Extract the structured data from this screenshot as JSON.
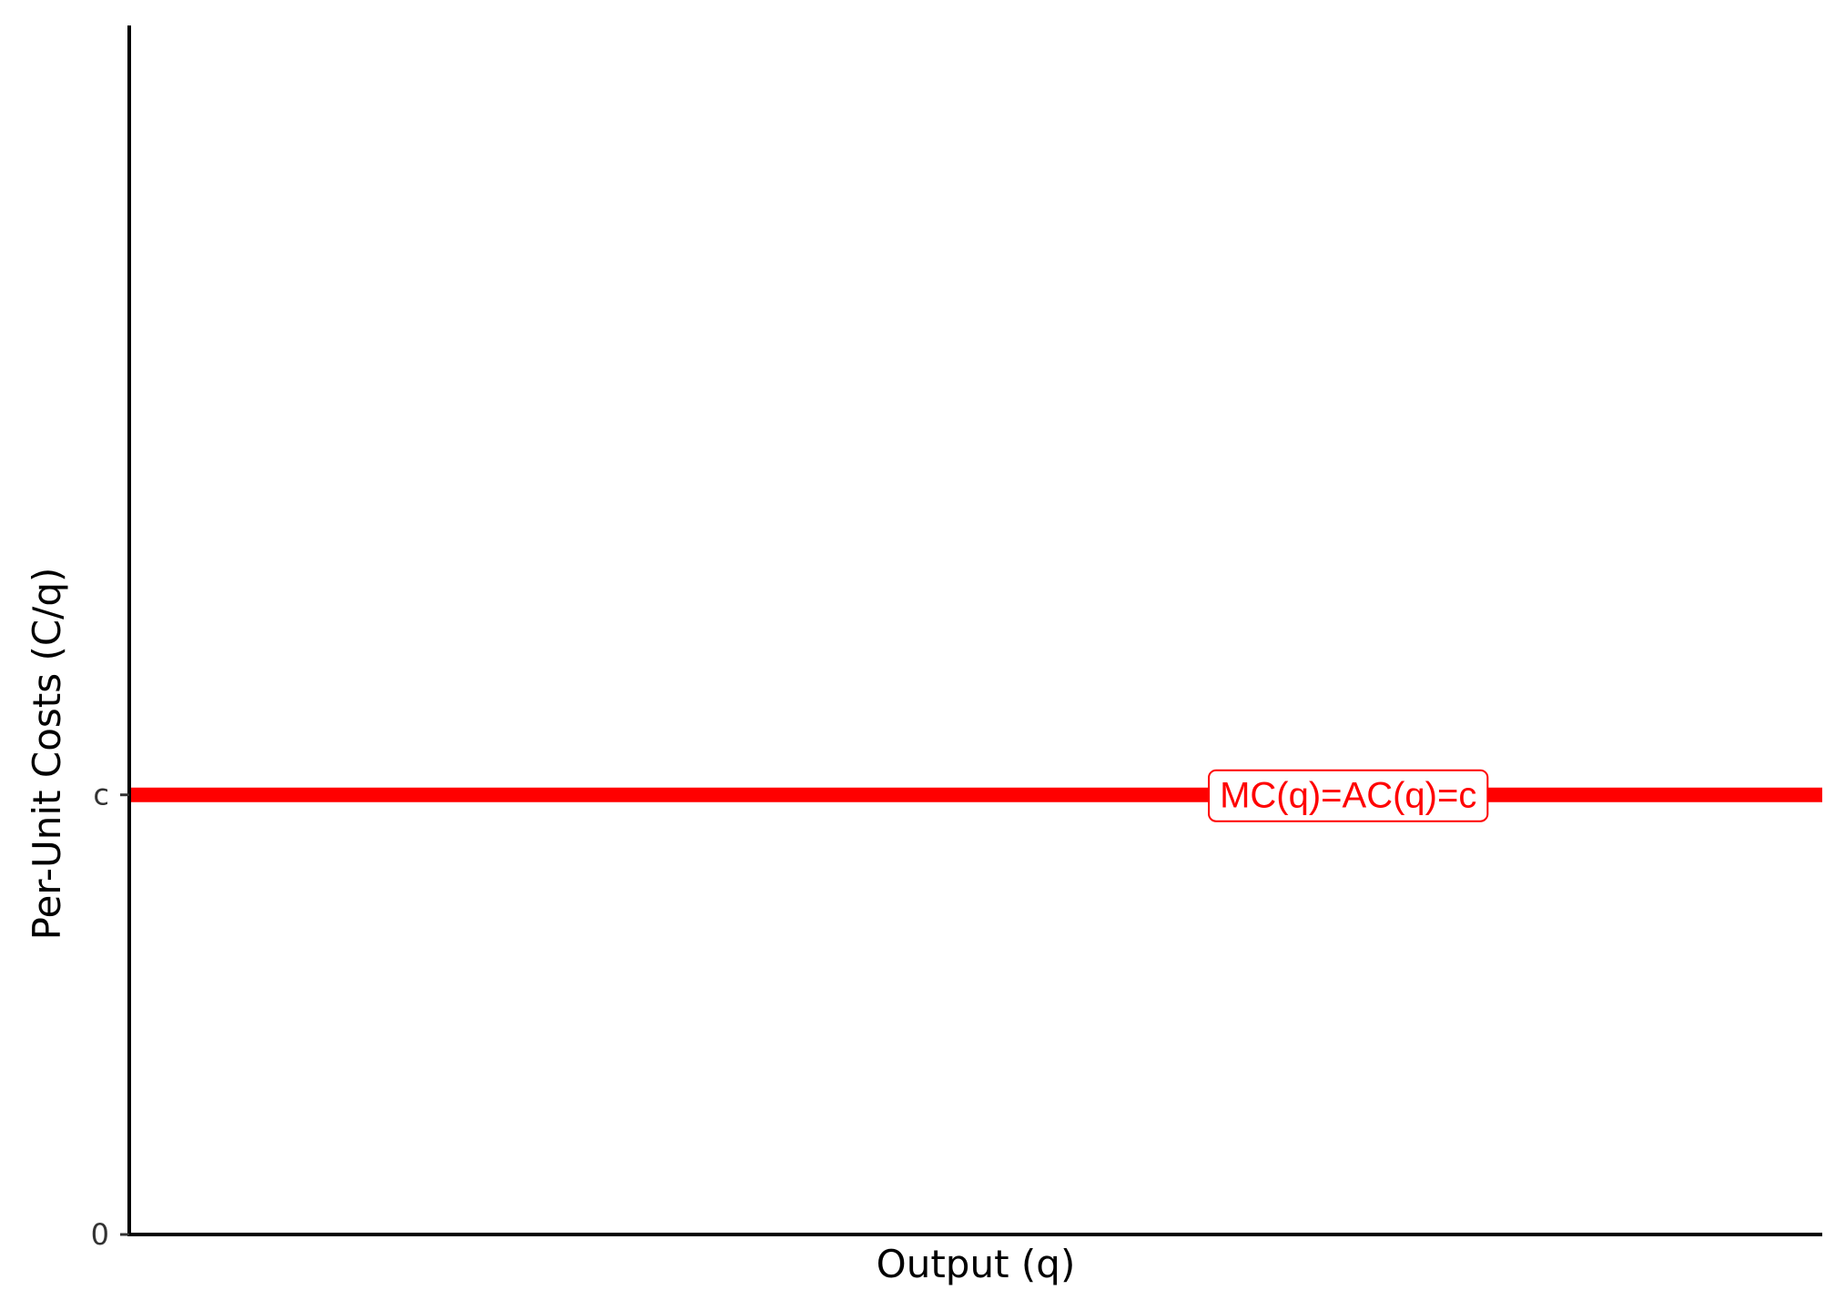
{
  "chart_data": {
    "type": "line",
    "xlabel": "Output (q)",
    "ylabel": "Per-Unit Costs (C/q)",
    "ylim": [
      0,
      2.75
    ],
    "y_ticks": [
      {
        "value": 0,
        "label": "0"
      },
      {
        "value": 1,
        "label": "c"
      }
    ],
    "x_ticks": [],
    "grid": false,
    "series": [
      {
        "name": "MC(q)=AC(q)=c",
        "color": "#ff0000",
        "x": [
          0,
          1
        ],
        "y": [
          1,
          1
        ]
      }
    ],
    "annotations": [
      {
        "text": "MC(q)=AC(q)=c",
        "x": 0.72,
        "y": 1,
        "color": "#ff0000",
        "style": "boxed-label"
      }
    ]
  }
}
